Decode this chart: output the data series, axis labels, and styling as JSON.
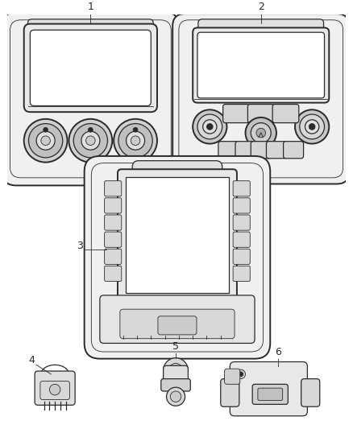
{
  "background_color": "#ffffff",
  "line_color": "#2a2a2a",
  "label_color": "#111111",
  "figsize": [
    4.38,
    5.33
  ],
  "dpi": 100,
  "lw_outer": 1.4,
  "lw_inner": 0.9,
  "lw_thin": 0.6
}
